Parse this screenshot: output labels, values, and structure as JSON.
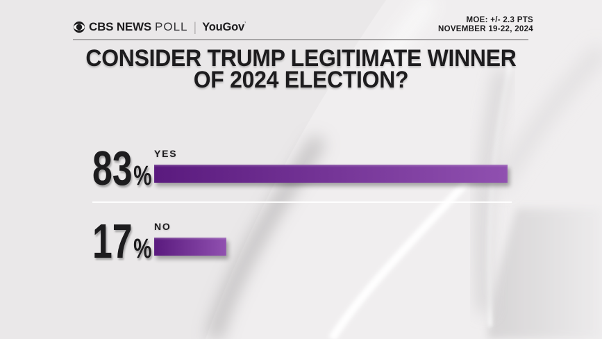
{
  "header": {
    "brand": {
      "cbs": "CBS NEWS",
      "poll": "POLL",
      "separator": "|",
      "partner": "YouGov",
      "trademark": "’"
    },
    "meta": {
      "moe": "MOE: +/- 2.3 PTS",
      "dates": "NOVEMBER 19-22, 2024"
    }
  },
  "title": {
    "line1": "CONSIDER TRUMP LEGITIMATE WINNER",
    "line2": "OF 2024 ELECTION?"
  },
  "chart_data": {
    "type": "bar",
    "orientation": "horizontal",
    "title": "CONSIDER TRUMP LEGITIMATE WINNER OF 2024 ELECTION?",
    "categories": [
      "YES",
      "NO"
    ],
    "values": [
      83,
      17
    ],
    "unit": "%",
    "xlim": [
      0,
      100
    ],
    "grid": false,
    "legend": false,
    "annotations": {
      "margin_of_error": "MOE: +/- 2.3 PTS",
      "field_dates": "NOVEMBER 19-22, 2024"
    },
    "bar_gradient": [
      "#5a1a7e",
      "#9050b0"
    ]
  },
  "colors": {
    "background": "#eae8e9",
    "text": "#1d1c1e",
    "header_rule": "#a8a6a7",
    "row_divider": "#ffffff",
    "bar_dark": "#5a1a7e",
    "bar_light": "#9050b0"
  }
}
